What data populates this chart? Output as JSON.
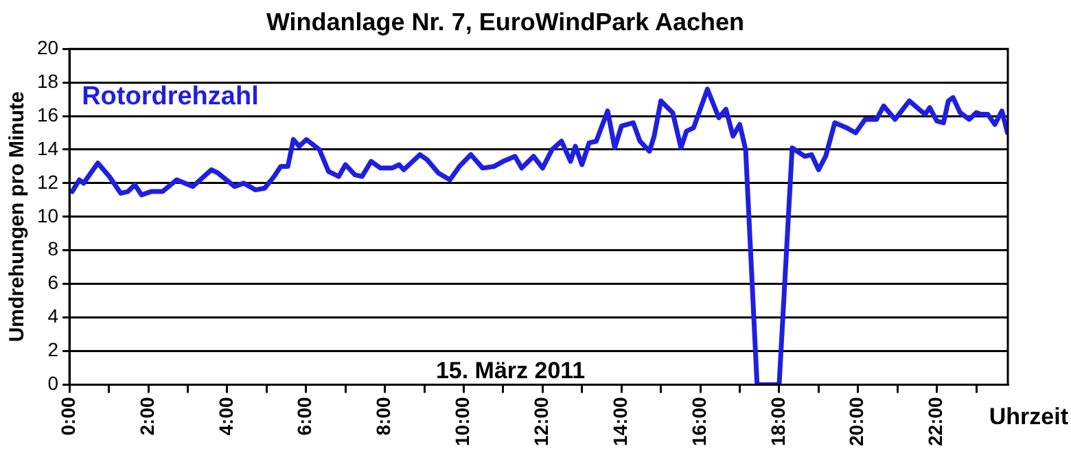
{
  "chart_data": {
    "type": "line",
    "title": "Windanlage Nr. 7, EuroWindPark Aachen",
    "xlabel": "Uhrzeit",
    "ylabel": "Umdrehungen pro Minute",
    "annotations": [
      "15. März 2011"
    ],
    "grid": "y",
    "legend": false,
    "line_style": "solid",
    "xlim": [
      0,
      23.8
    ],
    "xticks": [
      {
        "value": 0,
        "label": "0:00"
      },
      {
        "value": 1,
        "label": null
      },
      {
        "value": 2,
        "label": "2:00"
      },
      {
        "value": 3,
        "label": null
      },
      {
        "value": 4,
        "label": "4:00"
      },
      {
        "value": 5,
        "label": null
      },
      {
        "value": 6,
        "label": "6:00"
      },
      {
        "value": 7,
        "label": null
      },
      {
        "value": 8,
        "label": "8:00"
      },
      {
        "value": 9,
        "label": null
      },
      {
        "value": 10,
        "label": "10:00"
      },
      {
        "value": 11,
        "label": null
      },
      {
        "value": 12,
        "label": "12:00"
      },
      {
        "value": 13,
        "label": null
      },
      {
        "value": 14,
        "label": "14:00"
      },
      {
        "value": 15,
        "label": null
      },
      {
        "value": 16,
        "label": "16:00"
      },
      {
        "value": 17,
        "label": null
      },
      {
        "value": 18,
        "label": "18:00"
      },
      {
        "value": 19,
        "label": null
      },
      {
        "value": 20,
        "label": "20:00"
      },
      {
        "value": 21,
        "label": null
      },
      {
        "value": 22,
        "label": "22:00"
      },
      {
        "value": 23,
        "label": null
      }
    ],
    "ylim": [
      0,
      20
    ],
    "yticks": [
      0,
      2,
      4,
      6,
      8,
      10,
      12,
      14,
      16,
      18,
      20
    ],
    "series": [
      {
        "name": "Rotordrehzahl",
        "color": "#1f1fe0",
        "x": [
          0.07,
          0.25,
          0.36,
          0.72,
          1.01,
          1.3,
          1.48,
          1.66,
          1.83,
          2.07,
          2.36,
          2.72,
          3.13,
          3.6,
          3.77,
          4.19,
          4.42,
          4.72,
          4.95,
          5.19,
          5.36,
          5.54,
          5.68,
          5.83,
          6.01,
          6.34,
          6.57,
          6.83,
          7.0,
          7.24,
          7.42,
          7.65,
          7.89,
          8.18,
          8.36,
          8.48,
          8.89,
          9.07,
          9.36,
          9.65,
          9.89,
          10.18,
          10.48,
          10.77,
          11.0,
          11.3,
          11.47,
          11.77,
          12.0,
          12.24,
          12.48,
          12.71,
          12.83,
          13.0,
          13.18,
          13.36,
          13.65,
          13.83,
          14.0,
          14.3,
          14.47,
          14.71,
          14.83,
          15.0,
          15.3,
          15.51,
          15.65,
          15.83,
          16.18,
          16.47,
          16.65,
          16.83,
          17.0,
          17.15,
          17.44,
          18.0,
          18.33,
          18.65,
          18.82,
          19.0,
          19.18,
          19.41,
          19.71,
          19.94,
          20.18,
          20.47,
          20.65,
          20.94,
          21.3,
          21.7,
          21.82,
          22.0,
          22.17,
          22.29,
          22.41,
          22.59,
          22.82,
          23.0,
          23.12,
          23.29,
          23.47,
          23.65,
          23.79
        ],
        "values": [
          11.5,
          12.2,
          12.0,
          13.2,
          12.4,
          11.4,
          11.5,
          11.9,
          11.3,
          11.5,
          11.5,
          12.2,
          11.8,
          12.8,
          12.6,
          11.8,
          12.0,
          11.6,
          11.7,
          12.4,
          13.0,
          13.0,
          14.6,
          14.2,
          14.6,
          14.0,
          12.7,
          12.4,
          13.1,
          12.5,
          12.4,
          13.3,
          12.9,
          12.9,
          13.1,
          12.8,
          13.7,
          13.4,
          12.6,
          12.2,
          13.0,
          13.7,
          12.9,
          13.0,
          13.3,
          13.6,
          12.9,
          13.6,
          12.9,
          14.0,
          14.5,
          13.3,
          14.2,
          13.1,
          14.4,
          14.5,
          16.3,
          14.1,
          15.4,
          15.6,
          14.5,
          13.9,
          14.8,
          16.9,
          16.2,
          14.1,
          15.1,
          15.3,
          17.6,
          15.9,
          16.4,
          14.8,
          15.5,
          14.0,
          0,
          0,
          14.1,
          13.6,
          13.7,
          12.8,
          13.6,
          15.6,
          15.3,
          15.0,
          15.8,
          15.8,
          16.6,
          15.8,
          16.9,
          16.1,
          16.5,
          15.7,
          15.6,
          16.9,
          17.1,
          16.2,
          15.8,
          16.2,
          16.1,
          16.1,
          15.5,
          16.3,
          15.0
        ]
      }
    ]
  }
}
